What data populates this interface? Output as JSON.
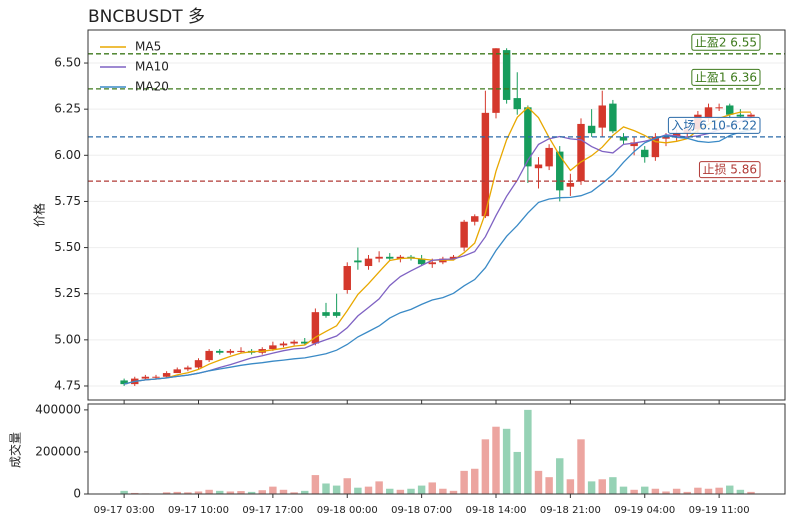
{
  "chart_data": {
    "type": "candlestick",
    "title": "BNCBUSDT  多",
    "ylabel": "价格",
    "categories": [
      "09-17 03:00",
      null,
      null,
      null,
      null,
      null,
      null,
      "09-17 10:00",
      null,
      null,
      null,
      null,
      null,
      null,
      "09-17 17:00",
      null,
      null,
      null,
      null,
      null,
      null,
      "09-18 00:00",
      null,
      null,
      null,
      null,
      null,
      null,
      "09-18 07:00",
      null,
      null,
      null,
      null,
      null,
      null,
      "09-18 14:00",
      null,
      null,
      null,
      null,
      null,
      null,
      "09-18 21:00",
      null,
      null,
      null,
      null,
      null,
      null,
      "09-19 04:00",
      null,
      null,
      null,
      null,
      null,
      null,
      "09-19 11:00",
      null,
      null,
      null
    ],
    "open": [
      4.78,
      4.76,
      4.79,
      4.8,
      4.8,
      4.82,
      4.84,
      4.85,
      4.89,
      4.94,
      4.93,
      4.94,
      4.94,
      4.93,
      4.95,
      4.97,
      4.98,
      4.99,
      4.98,
      5.15,
      5.15,
      5.27,
      5.43,
      5.4,
      5.44,
      5.45,
      5.44,
      5.45,
      5.44,
      5.41,
      5.42,
      5.44,
      5.5,
      5.64,
      5.67,
      6.23,
      6.57,
      6.31,
      6.26,
      5.93,
      5.94,
      6.02,
      5.83,
      5.86,
      6.16,
      6.15,
      6.28,
      6.1,
      6.05,
      6.03,
      5.99,
      6.09,
      6.1,
      6.12,
      6.14,
      6.2,
      6.26,
      6.27,
      6.22,
      6.21
    ],
    "high": [
      4.79,
      4.8,
      4.81,
      4.81,
      4.83,
      4.85,
      4.86,
      4.9,
      4.95,
      4.95,
      4.95,
      4.96,
      4.95,
      4.96,
      4.99,
      4.99,
      5.0,
      5.01,
      5.17,
      5.2,
      5.25,
      5.42,
      5.5,
      5.46,
      5.48,
      5.47,
      5.46,
      5.46,
      5.46,
      5.44,
      5.45,
      5.46,
      5.65,
      5.68,
      6.35,
      6.58,
      6.58,
      6.45,
      6.27,
      5.99,
      6.06,
      6.05,
      5.9,
      6.2,
      6.25,
      6.35,
      6.3,
      6.12,
      6.1,
      6.05,
      6.12,
      6.12,
      6.14,
      6.16,
      6.24,
      6.28,
      6.28,
      6.28,
      6.25,
      6.23
    ],
    "low": [
      4.75,
      4.75,
      4.78,
      4.79,
      4.79,
      4.82,
      4.83,
      4.84,
      4.88,
      4.92,
      4.92,
      4.93,
      4.92,
      4.92,
      4.94,
      4.96,
      4.97,
      4.97,
      4.97,
      5.12,
      5.12,
      5.25,
      5.38,
      5.38,
      5.42,
      5.43,
      5.42,
      5.43,
      5.4,
      5.39,
      5.41,
      5.43,
      5.48,
      5.62,
      5.66,
      6.2,
      6.28,
      6.22,
      5.85,
      5.82,
      5.92,
      5.75,
      5.78,
      5.84,
      6.1,
      6.1,
      6.12,
      6.06,
      6.0,
      5.96,
      5.97,
      6.05,
      6.08,
      6.1,
      6.12,
      6.18,
      6.24,
      6.2,
      6.2,
      6.2
    ],
    "close": [
      4.76,
      4.79,
      4.8,
      4.8,
      4.82,
      4.84,
      4.85,
      4.89,
      4.94,
      4.93,
      4.94,
      4.94,
      4.93,
      4.95,
      4.97,
      4.98,
      4.99,
      4.98,
      5.15,
      5.13,
      5.13,
      5.4,
      5.42,
      5.44,
      5.45,
      5.44,
      5.45,
      5.44,
      5.41,
      5.42,
      5.44,
      5.45,
      5.64,
      5.67,
      6.23,
      6.58,
      6.3,
      6.25,
      5.94,
      5.95,
      6.04,
      5.81,
      5.85,
      6.17,
      6.12,
      6.27,
      6.13,
      6.08,
      6.07,
      5.99,
      6.1,
      6.1,
      6.12,
      6.14,
      6.22,
      6.26,
      6.26,
      6.22,
      6.21,
      6.22
    ],
    "up_color": "#d4382c",
    "down_color": "#169c5c",
    "ylim": [
      4.674,
      6.679
    ],
    "yticks": [
      {
        "value": 4.75,
        "label": "4.75"
      },
      {
        "value": 5,
        "label": "5.00"
      },
      {
        "value": 5.25,
        "label": "5.25"
      },
      {
        "value": 5.5,
        "label": "5.50"
      },
      {
        "value": 5.75,
        "label": "5.75"
      },
      {
        "value": 6,
        "label": "6.00"
      },
      {
        "value": 6.25,
        "label": "6.25"
      },
      {
        "value": 6.5,
        "label": "6.50"
      }
    ],
    "xlim": [
      -3.4,
      62.2
    ],
    "grid": true,
    "legend": "upper left",
    "series": [
      {
        "name": "MA5",
        "color": "#e8a800",
        "values": [
          4.76,
          4.775,
          4.783,
          4.788,
          4.794,
          4.81,
          4.822,
          4.84,
          4.868,
          4.89,
          4.91,
          4.928,
          4.936,
          4.938,
          4.946,
          4.954,
          4.966,
          4.972,
          5.014,
          5.046,
          5.076,
          5.158,
          5.246,
          5.304,
          5.368,
          5.43,
          5.44,
          5.444,
          5.438,
          5.432,
          5.432,
          5.432,
          5.472,
          5.524,
          5.686,
          5.914,
          6.084,
          6.206,
          6.26,
          6.204,
          6.096,
          5.998,
          5.918,
          5.964,
          5.998,
          6.044,
          6.108,
          6.154,
          6.134,
          6.108,
          6.074,
          6.068,
          6.076,
          6.09,
          6.136,
          6.168,
          6.2,
          6.22,
          6.234,
          6.234
        ]
      },
      {
        "name": "MA10",
        "color": "#7f62c3",
        "values": [
          4.76,
          4.775,
          4.783,
          4.788,
          4.794,
          4.802,
          4.809,
          4.819,
          4.832,
          4.85,
          4.866,
          4.884,
          4.902,
          4.914,
          4.928,
          4.941,
          4.951,
          4.955,
          4.98,
          5.0,
          5.021,
          5.065,
          5.13,
          5.175,
          5.222,
          5.294,
          5.343,
          5.374,
          5.403,
          5.431,
          5.436,
          5.438,
          5.455,
          5.478,
          5.559,
          5.673,
          5.778,
          5.865,
          5.973,
          6.059,
          6.09,
          6.102,
          6.089,
          6.084,
          6.047,
          6.021,
          6.013,
          6.059,
          6.066,
          6.076,
          6.091,
          6.111,
          6.105,
          6.099,
          6.105,
          6.118,
          6.138,
          6.155,
          6.185,
          6.201
        ]
      },
      {
        "name": "MA20",
        "color": "#3a8ac6",
        "values": [
          4.76,
          4.775,
          4.783,
          4.788,
          4.794,
          4.802,
          4.809,
          4.819,
          4.832,
          4.842,
          4.852,
          4.862,
          4.87,
          4.876,
          4.884,
          4.89,
          4.897,
          4.902,
          4.913,
          4.925,
          4.944,
          4.975,
          5.016,
          5.045,
          5.075,
          5.118,
          5.147,
          5.165,
          5.192,
          5.216,
          5.229,
          5.252,
          5.293,
          5.327,
          5.391,
          5.484,
          5.561,
          5.62,
          5.688,
          5.745,
          5.763,
          5.77,
          5.772,
          5.781,
          5.803,
          5.847,
          5.896,
          5.962,
          6.02,
          6.068,
          6.091,
          6.107,
          6.097,
          6.092,
          6.076,
          6.07,
          6.076,
          6.107,
          6.126,
          6.139
        ]
      }
    ],
    "levels": [
      {
        "label": "止盈2 6.55",
        "value": 6.55,
        "color": "#3e7a1c"
      },
      {
        "label": "止盈1 6.36",
        "value": 6.36,
        "color": "#3e7a1c"
      },
      {
        "label": "入场 6.10-6.22",
        "value": 6.1,
        "color": "#2a6aa8"
      },
      {
        "label": "止损 5.86",
        "value": 5.86,
        "color": "#b03a36"
      }
    ],
    "volume": {
      "ylabel": "成交量",
      "values": [
        15000,
        5000,
        3000,
        2000,
        8000,
        10000,
        8000,
        12000,
        20000,
        15000,
        12000,
        14000,
        10000,
        18000,
        35000,
        20000,
        8000,
        15000,
        90000,
        50000,
        40000,
        75000,
        30000,
        35000,
        60000,
        25000,
        20000,
        25000,
        40000,
        55000,
        25000,
        15000,
        110000,
        120000,
        260000,
        320000,
        310000,
        200000,
        400000,
        110000,
        80000,
        170000,
        70000,
        260000,
        60000,
        70000,
        80000,
        35000,
        20000,
        35000,
        25000,
        12000,
        25000,
        10000,
        30000,
        25000,
        30000,
        40000,
        20000,
        10000
      ],
      "ylim": [
        0,
        428000
      ],
      "yticks": [
        0,
        200000,
        400000
      ]
    }
  }
}
